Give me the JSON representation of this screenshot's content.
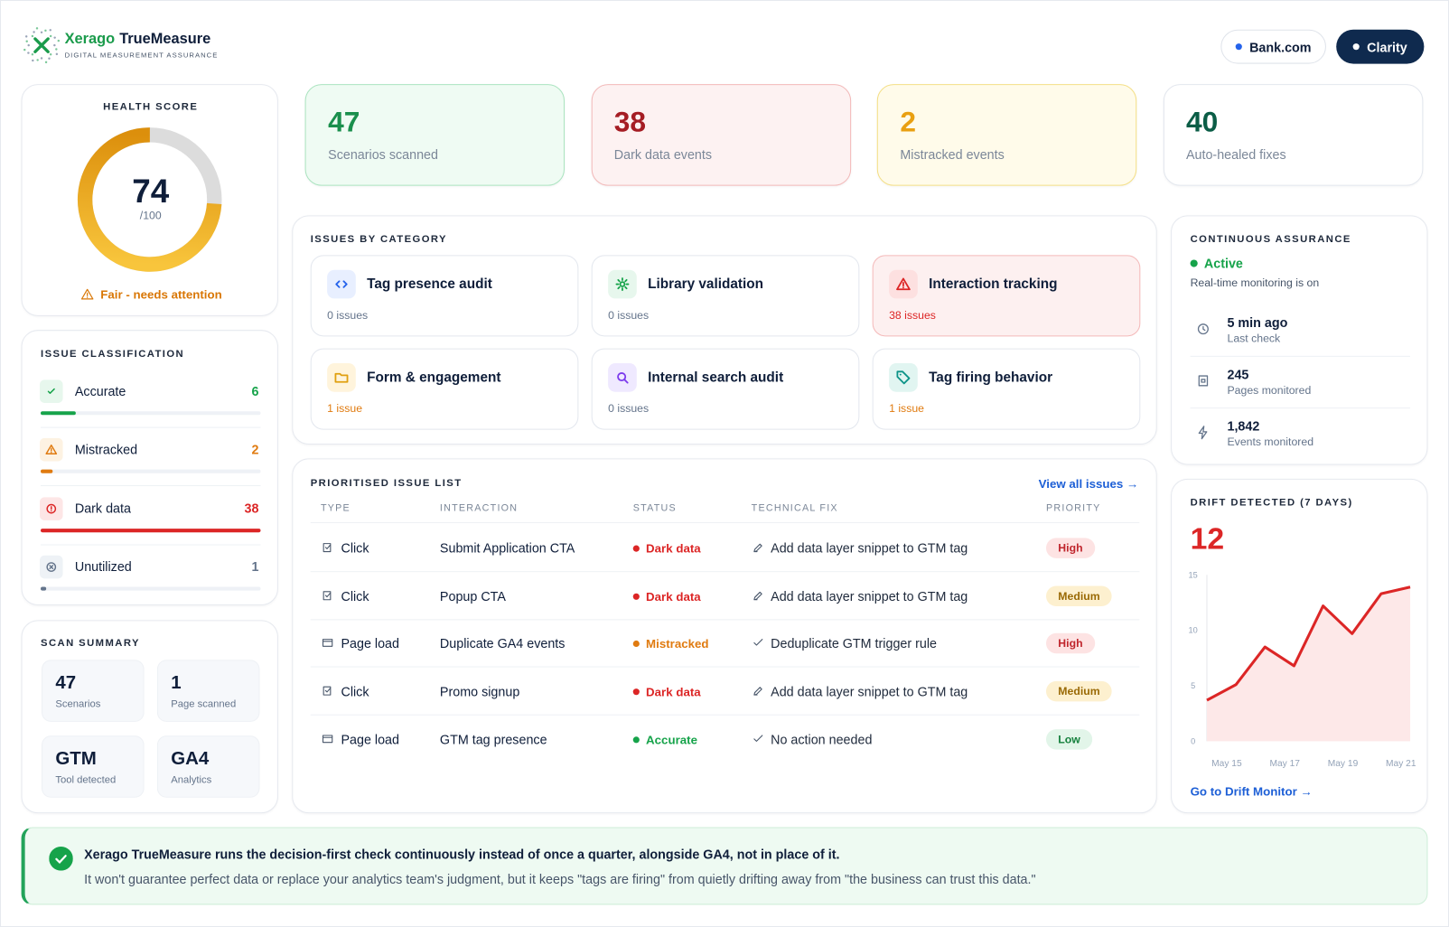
{
  "header": {
    "brand": "Xerago",
    "product": "TrueMeasure",
    "tagline": "DIGITAL MEASUREMENT ASSURANCE",
    "buttons": [
      "Bank.com",
      "Clarity"
    ]
  },
  "health": {
    "title": "HEALTH SCORE",
    "score": 74,
    "scale_max": {
      "value": 100,
      "label": "/100"
    },
    "status": "Fair - needs attention"
  },
  "kpis": [
    {
      "value": 47,
      "label": "Scenarios scanned",
      "tone": "green"
    },
    {
      "value": 38,
      "label": "Dark data events",
      "tone": "red"
    },
    {
      "value": 2,
      "label": "Mistracked events",
      "tone": "yellow"
    },
    {
      "value": 40,
      "label": "Auto-healed fixes",
      "tone": "plain"
    }
  ],
  "classification": {
    "title": "ISSUE CLASSIFICATION",
    "items": [
      {
        "name": "Accurate",
        "count": 6,
        "tone": "green",
        "icon": "check"
      },
      {
        "name": "Mistracked",
        "count": 2,
        "tone": "orange",
        "icon": "alert"
      },
      {
        "name": "Dark data",
        "count": 38,
        "tone": "red",
        "icon": "warnc"
      },
      {
        "name": "Unutilized",
        "count": 1,
        "tone": "gray",
        "icon": "xcircle"
      }
    ]
  },
  "scan_summary": {
    "title": "SCAN SUMMARY",
    "tiles": [
      {
        "value": "47",
        "label": "Scenarios"
      },
      {
        "value": "1",
        "label": "Page scanned"
      },
      {
        "value": "GTM",
        "label": "Tool detected"
      },
      {
        "value": "GA4",
        "label": "Analytics"
      }
    ]
  },
  "categories": {
    "title": "ISSUES BY CATEGORY",
    "items": [
      {
        "name": "Tag presence audit",
        "count_label": "0 issues",
        "tone": "blue",
        "icon": "code",
        "count_tone": "gray",
        "highlight": false
      },
      {
        "name": "Library validation",
        "count_label": "0 issues",
        "tone": "green",
        "icon": "gear",
        "count_tone": "gray",
        "highlight": false
      },
      {
        "name": "Interaction tracking",
        "count_label": "38 issues",
        "tone": "red",
        "icon": "alert",
        "count_tone": "red",
        "highlight": true
      },
      {
        "name": "Form & engagement",
        "count_label": "1 issue",
        "tone": "yellow",
        "icon": "folder",
        "count_tone": "orange",
        "highlight": false
      },
      {
        "name": "Internal search audit",
        "count_label": "0 issues",
        "tone": "purple",
        "icon": "search",
        "count_tone": "gray",
        "highlight": false
      },
      {
        "name": "Tag firing behavior",
        "count_label": "1 issue",
        "tone": "teal",
        "icon": "tag",
        "count_tone": "orange",
        "highlight": false
      }
    ]
  },
  "assurance": {
    "title": "CONTINUOUS ASSURANCE",
    "status": "Active",
    "subtitle": "Real-time monitoring is on",
    "items": [
      {
        "value": "5 min ago",
        "label": "Last check",
        "icon": "clock"
      },
      {
        "value": "245",
        "label": "Pages monitored",
        "icon": "page"
      },
      {
        "value": "1,842",
        "label": "Events monitored",
        "icon": "bolt"
      }
    ]
  },
  "issues": {
    "title": "PRIORITISED ISSUE LIST",
    "link": "View all issues →",
    "columns": [
      "TYPE",
      "INTERACTION",
      "STATUS",
      "TECHNICAL FIX",
      "PRIORITY"
    ],
    "rows": [
      {
        "type": "Click",
        "type_icon": "click",
        "interaction": "Submit Application CTA",
        "status": "Dark data",
        "status_tone": "red",
        "fix": "Add data layer snippet to GTM tag",
        "fix_icon": "edit",
        "priority": "High",
        "priority_tone": "red"
      },
      {
        "type": "Click",
        "type_icon": "click",
        "interaction": "Popup CTA",
        "status": "Dark data",
        "status_tone": "red",
        "fix": "Add data layer snippet to GTM tag",
        "fix_icon": "edit",
        "priority": "Medium",
        "priority_tone": "yellow"
      },
      {
        "type": "Page load",
        "type_icon": "window",
        "interaction": "Duplicate GA4 events",
        "status": "Mistracked",
        "status_tone": "orange",
        "fix": "Deduplicate GTM trigger rule",
        "fix_icon": "tick",
        "priority": "High",
        "priority_tone": "red"
      },
      {
        "type": "Click",
        "type_icon": "click",
        "interaction": "Promo signup",
        "status": "Dark data",
        "status_tone": "red",
        "fix": "Add data layer snippet to GTM tag",
        "fix_icon": "edit",
        "priority": "Medium",
        "priority_tone": "yellow"
      },
      {
        "type": "Page load",
        "type_icon": "window",
        "interaction": "GTM tag presence",
        "status": "Accurate",
        "status_tone": "green",
        "fix": "No action needed",
        "fix_icon": "tick",
        "priority": "Low",
        "priority_tone": "green"
      }
    ]
  },
  "drift": {
    "title": "DRIFT DETECTED (7 DAYS)",
    "value": 12,
    "link": "Go to Drift Monitor →",
    "chart": {
      "type": "line",
      "categories": [
        null,
        "May 15",
        null,
        "May 17",
        null,
        "May 19",
        null,
        "May 21"
      ],
      "values": [
        3.7,
        5.1,
        8.5,
        6.8,
        12.2,
        9.7,
        13.3,
        13.9
      ],
      "color": "#dc2626",
      "ylim": [
        0,
        15
      ],
      "yticks": [
        0,
        5,
        10,
        15
      ]
    }
  },
  "banner": {
    "headline": "Xerago TrueMeasure runs the decision-first check continuously instead of once a quarter, alongside GA4, not in place of it.",
    "body": "It won't guarantee perfect data or replace your analytics team's judgment, but it keeps \"tags are firing\" from quietly drifting away from \"the business can trust this data.\""
  }
}
